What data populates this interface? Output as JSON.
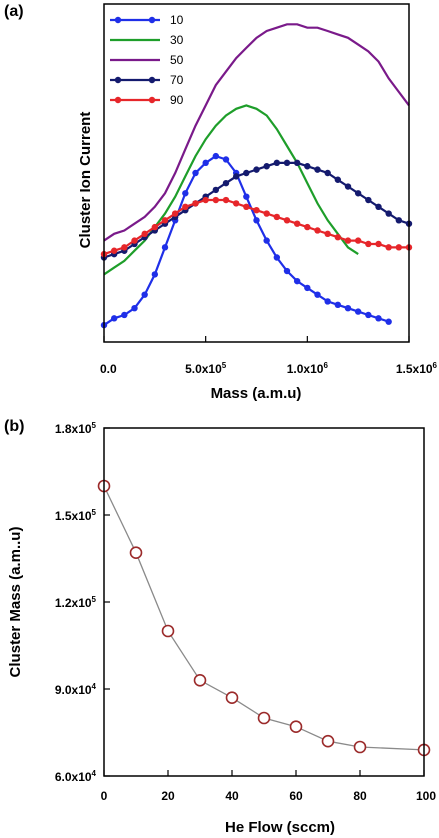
{
  "chart_data": [
    {
      "panel": "(a)",
      "type": "line",
      "xlabel": "Mass (a.m.u)",
      "ylabel": "Cluster Ion Current",
      "xlim": [
        0,
        1500000
      ],
      "x_ticks": [
        {
          "value": 0,
          "mant": "0.0",
          "exp": ""
        },
        {
          "value": 500000,
          "mant": "5.0x10",
          "exp": "5"
        },
        {
          "value": 1000000,
          "mant": "1.0x10",
          "exp": "6"
        },
        {
          "value": 1500000,
          "mant": "1.5x10",
          "exp": "6"
        }
      ],
      "y_ticks_shown": false,
      "ylim": [
        0,
        1
      ],
      "legend_position": "top-left",
      "series": [
        {
          "name": "10",
          "color": "#1f2fe8",
          "marker": "circle",
          "x": [
            0,
            50000,
            100000,
            150000,
            200000,
            250000,
            300000,
            350000,
            400000,
            450000,
            500000,
            550000,
            600000,
            650000,
            700000,
            750000,
            800000,
            850000,
            900000,
            950000,
            1000000,
            1050000,
            1100000,
            1150000,
            1200000,
            1250000,
            1300000,
            1350000,
            1400000
          ],
          "values": [
            0.05,
            0.07,
            0.08,
            0.1,
            0.14,
            0.2,
            0.28,
            0.36,
            0.44,
            0.5,
            0.53,
            0.55,
            0.54,
            0.5,
            0.43,
            0.36,
            0.3,
            0.25,
            0.21,
            0.18,
            0.16,
            0.14,
            0.12,
            0.11,
            0.1,
            0.09,
            0.08,
            0.07,
            0.06
          ]
        },
        {
          "name": "30",
          "color": "#1e9e2a",
          "marker": "none",
          "x": [
            0,
            50000,
            100000,
            150000,
            200000,
            250000,
            300000,
            350000,
            400000,
            450000,
            500000,
            550000,
            600000,
            650000,
            700000,
            750000,
            800000,
            850000,
            900000,
            950000,
            1000000,
            1050000,
            1100000,
            1150000,
            1200000,
            1250000
          ],
          "values": [
            0.2,
            0.22,
            0.24,
            0.27,
            0.3,
            0.34,
            0.38,
            0.43,
            0.49,
            0.55,
            0.6,
            0.64,
            0.67,
            0.69,
            0.7,
            0.69,
            0.67,
            0.63,
            0.58,
            0.53,
            0.47,
            0.41,
            0.36,
            0.32,
            0.28,
            0.26
          ]
        },
        {
          "name": "50",
          "color": "#7a1a8a",
          "marker": "none",
          "x": [
            0,
            50000,
            100000,
            150000,
            200000,
            250000,
            300000,
            350000,
            400000,
            450000,
            500000,
            550000,
            600000,
            650000,
            700000,
            750000,
            800000,
            850000,
            900000,
            950000,
            1000000,
            1050000,
            1100000,
            1150000,
            1200000,
            1250000,
            1300000,
            1350000,
            1400000,
            1450000,
            1500000
          ],
          "values": [
            0.3,
            0.32,
            0.33,
            0.35,
            0.37,
            0.4,
            0.44,
            0.5,
            0.57,
            0.64,
            0.7,
            0.76,
            0.8,
            0.84,
            0.87,
            0.9,
            0.92,
            0.93,
            0.94,
            0.94,
            0.93,
            0.93,
            0.92,
            0.91,
            0.9,
            0.88,
            0.86,
            0.83,
            0.78,
            0.74,
            0.7
          ]
        },
        {
          "name": "70",
          "color": "#141a6e",
          "marker": "circle",
          "x": [
            0,
            50000,
            100000,
            150000,
            200000,
            250000,
            300000,
            350000,
            400000,
            450000,
            500000,
            550000,
            600000,
            650000,
            700000,
            750000,
            800000,
            850000,
            900000,
            950000,
            1000000,
            1050000,
            1100000,
            1150000,
            1200000,
            1250000,
            1300000,
            1350000,
            1400000,
            1450000,
            1500000
          ],
          "values": [
            0.25,
            0.26,
            0.27,
            0.29,
            0.31,
            0.33,
            0.35,
            0.37,
            0.39,
            0.41,
            0.43,
            0.45,
            0.47,
            0.49,
            0.5,
            0.51,
            0.52,
            0.53,
            0.53,
            0.53,
            0.52,
            0.51,
            0.5,
            0.48,
            0.46,
            0.44,
            0.42,
            0.4,
            0.38,
            0.36,
            0.35
          ]
        },
        {
          "name": "90",
          "color": "#e6262a",
          "marker": "circle",
          "x": [
            0,
            50000,
            100000,
            150000,
            200000,
            250000,
            300000,
            350000,
            400000,
            450000,
            500000,
            550000,
            600000,
            650000,
            700000,
            750000,
            800000,
            850000,
            900000,
            950000,
            1000000,
            1050000,
            1100000,
            1150000,
            1200000,
            1250000,
            1300000,
            1350000,
            1400000,
            1450000,
            1500000
          ],
          "values": [
            0.26,
            0.27,
            0.28,
            0.3,
            0.32,
            0.34,
            0.36,
            0.38,
            0.4,
            0.41,
            0.42,
            0.42,
            0.42,
            0.41,
            0.4,
            0.39,
            0.38,
            0.37,
            0.36,
            0.35,
            0.34,
            0.33,
            0.32,
            0.31,
            0.3,
            0.3,
            0.29,
            0.29,
            0.28,
            0.28,
            0.28
          ]
        }
      ]
    },
    {
      "panel": "(b)",
      "type": "line",
      "xlabel": "He Flow (sccm)",
      "ylabel": "Cluster Mass (a.m..u)",
      "xlim": [
        0,
        100
      ],
      "ylim": [
        60000,
        180000
      ],
      "x_ticks": [
        {
          "value": 0,
          "label": "0"
        },
        {
          "value": 20,
          "label": "20"
        },
        {
          "value": 40,
          "label": "40"
        },
        {
          "value": 60,
          "label": "60"
        },
        {
          "value": 80,
          "label": "80"
        },
        {
          "value": 100,
          "label": "100"
        }
      ],
      "y_ticks": [
        {
          "value": 60000,
          "mant": "6.0x10",
          "exp": "4"
        },
        {
          "value": 90000,
          "mant": "9.0x10",
          "exp": "4"
        },
        {
          "value": 120000,
          "mant": "1.2x10",
          "exp": "5"
        },
        {
          "value": 150000,
          "mant": "1.5x10",
          "exp": "5"
        },
        {
          "value": 180000,
          "mant": "1.8x10",
          "exp": "5"
        }
      ],
      "series": [
        {
          "color": "#9b2a2a",
          "marker": "open-circle",
          "x": [
            0,
            10,
            20,
            30,
            40,
            50,
            60,
            70,
            80,
            100
          ],
          "values": [
            160000,
            137000,
            110000,
            93000,
            87000,
            80000,
            77000,
            72000,
            70000,
            69000
          ]
        }
      ]
    }
  ]
}
